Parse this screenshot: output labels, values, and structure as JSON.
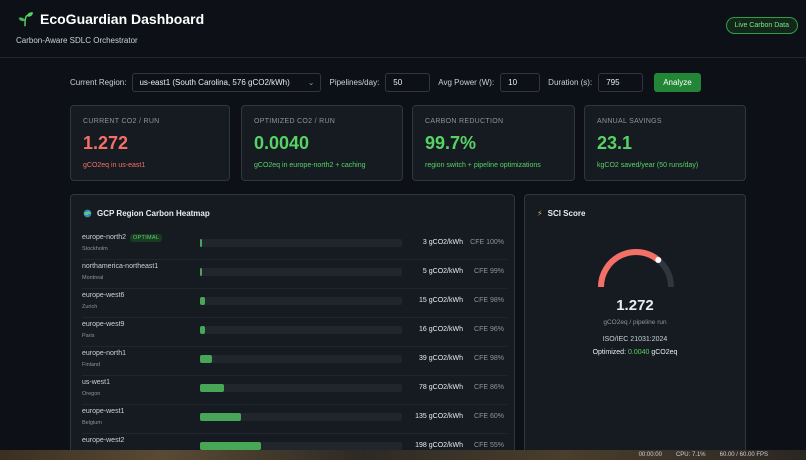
{
  "header": {
    "title": "EcoGuardian Dashboard",
    "subtitle": "Carbon-Aware SDLC Orchestrator",
    "badge": "Live Carbon Data"
  },
  "controls": {
    "region_label": "Current Region:",
    "region_value": "us-east1 (South Carolina, 576 gCO2/kWh)",
    "pipelines_label": "Pipelines/day:",
    "pipelines_value": "50",
    "power_label": "Avg Power (W):",
    "power_value": "10",
    "duration_label": "Duration (s):",
    "duration_value": "795",
    "analyze_label": "Analyze"
  },
  "cards": [
    {
      "label": "CURRENT CO2 / RUN",
      "value": "1.272",
      "sub": "gCO2eq in us-east1",
      "tone": "red"
    },
    {
      "label": "OPTIMIZED CO2 / RUN",
      "value": "0.0040",
      "sub": "gCO2eq in europe-north2 + caching",
      "tone": "green"
    },
    {
      "label": "CARBON REDUCTION",
      "value": "99.7%",
      "sub": "region switch + pipeline optimizations",
      "tone": "green"
    },
    {
      "label": "ANNUAL SAVINGS",
      "value": "23.1",
      "sub": "kgCO2 saved/year (50 runs/day)",
      "tone": "green"
    }
  ],
  "heatmap": {
    "title": "GCP Region Carbon Heatmap",
    "icon": "globe-icon",
    "optimal_badge": "OPTIMAL",
    "max_intensity": 576,
    "regions": [
      {
        "name": "europe-north2",
        "city": "Stockholm",
        "intensity": 3,
        "value": "3 gCO2/kWh",
        "cfe": "CFE 100%",
        "optimal": true
      },
      {
        "name": "northamerica-northeast1",
        "city": "Montreal",
        "intensity": 5,
        "value": "5 gCO2/kWh",
        "cfe": "CFE 99%",
        "optimal": false
      },
      {
        "name": "europe-west6",
        "city": "Zurich",
        "intensity": 15,
        "value": "15 gCO2/kWh",
        "cfe": "CFE 98%",
        "optimal": false
      },
      {
        "name": "europe-west9",
        "city": "Paris",
        "intensity": 16,
        "value": "16 gCO2/kWh",
        "cfe": "CFE 96%",
        "optimal": false
      },
      {
        "name": "europe-north1",
        "city": "Finland",
        "intensity": 39,
        "value": "39 gCO2/kWh",
        "cfe": "CFE 98%",
        "optimal": false
      },
      {
        "name": "us-west1",
        "city": "Oregon",
        "intensity": 78,
        "value": "78 gCO2/kWh",
        "cfe": "CFE 86%",
        "optimal": false
      },
      {
        "name": "europe-west1",
        "city": "Belgium",
        "intensity": 135,
        "value": "135 gCO2/kWh",
        "cfe": "CFE 60%",
        "optimal": false
      },
      {
        "name": "europe-west2",
        "city": "",
        "intensity": 198,
        "value": "198 gCO2/kWh",
        "cfe": "CFE 55%",
        "optimal": false
      }
    ]
  },
  "sci": {
    "title": "SCI Score",
    "icon": "lightning-icon",
    "value": "1.272",
    "sub": "gCO2eq / pipeline run",
    "standard": "ISO/IEC 21031:2024",
    "optimized_label": "Optimized:",
    "optimized_value": "0.0040",
    "optimized_unit": "gCO2eq",
    "gauge_level": 0.72,
    "gauge_colors": {
      "track": "#30363d",
      "fill": "#f47067"
    }
  },
  "statusbar": {
    "time": "00:00:00",
    "cpu": "CPU: 7.1%",
    "fps": "60.00 / 60.00 FPS"
  }
}
